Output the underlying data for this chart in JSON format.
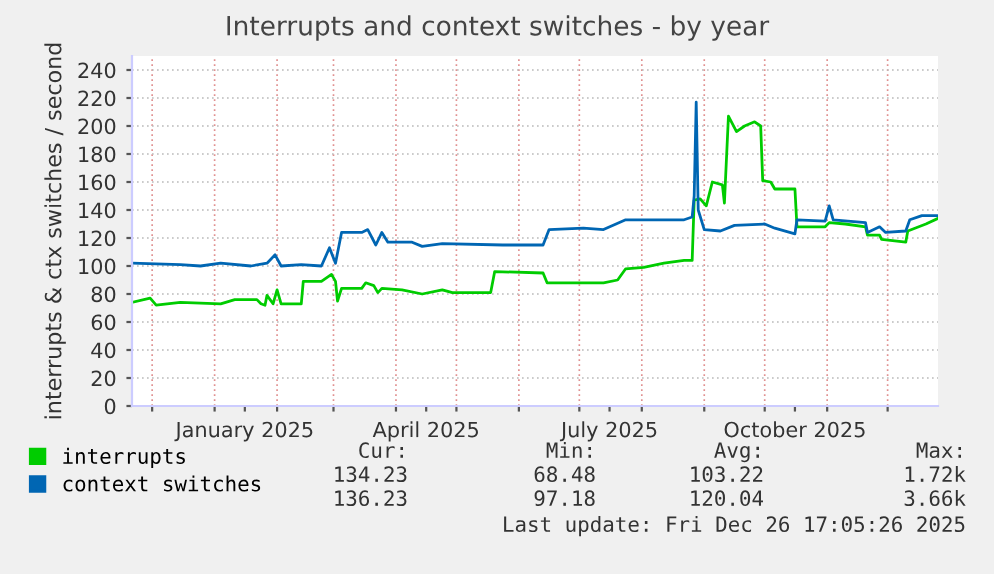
{
  "chart_data": {
    "type": "line",
    "title": "Interrupts and context switches - by year",
    "ylabel": "interrupts & ctx switches / second",
    "xlim": [
      "2024-11-21",
      "2025-12-26"
    ],
    "xticks": [
      {
        "value": "2024-12-01",
        "label": null
      },
      {
        "value": "2025-01-01",
        "label": null
      },
      {
        "value": "2025-01-16",
        "label": "January 2025"
      },
      {
        "value": "2025-02-01",
        "label": null
      },
      {
        "value": "2025-03-01",
        "label": null
      },
      {
        "value": "2025-04-01",
        "label": null
      },
      {
        "value": "2025-04-16",
        "label": "April 2025"
      },
      {
        "value": "2025-05-01",
        "label": null
      },
      {
        "value": "2025-06-01",
        "label": null
      },
      {
        "value": "2025-07-01",
        "label": null
      },
      {
        "value": "2025-07-16",
        "label": "July 2025"
      },
      {
        "value": "2025-08-01",
        "label": null
      },
      {
        "value": "2025-09-01",
        "label": null
      },
      {
        "value": "2025-10-01",
        "label": null
      },
      {
        "value": "2025-10-16",
        "label": "October 2025"
      },
      {
        "value": "2025-11-01",
        "label": null
      },
      {
        "value": "2025-12-01",
        "label": null
      }
    ],
    "ylim": [
      0,
      250
    ],
    "yticks": [
      0,
      20,
      40,
      60,
      80,
      100,
      120,
      140,
      160,
      180,
      200,
      220,
      240
    ],
    "grid": true,
    "legend": "bottom left",
    "marker": "none",
    "line_style": "solid",
    "series": [
      {
        "name": "interrupts",
        "color": "#00cc00",
        "x": [
          "2024-11-21",
          "2024-11-30",
          "2024-12-03",
          "2024-12-15",
          "2025-01-04",
          "2025-01-11",
          "2025-01-22",
          "2025-01-24",
          "2025-01-26",
          "2025-01-27",
          "2025-01-30",
          "2025-02-01",
          "2025-02-03",
          "2025-02-13",
          "2025-02-14",
          "2025-02-23",
          "2025-02-28",
          "2025-03-02",
          "2025-03-03",
          "2025-03-05",
          "2025-03-15",
          "2025-03-17",
          "2025-03-21",
          "2025-03-23",
          "2025-03-25",
          "2025-04-04",
          "2025-04-14",
          "2025-04-24",
          "2025-04-29",
          "2025-05-18",
          "2025-05-20",
          "2025-06-13",
          "2025-06-15",
          "2025-07-13",
          "2025-07-20",
          "2025-07-24",
          "2025-08-02",
          "2025-08-12",
          "2025-08-22",
          "2025-08-26",
          "2025-08-27",
          "2025-08-30",
          "2025-09-02",
          "2025-09-05",
          "2025-09-10",
          "2025-09-11",
          "2025-09-13",
          "2025-09-17",
          "2025-09-21",
          "2025-09-26",
          "2025-09-29",
          "2025-09-30",
          "2025-10-04",
          "2025-10-06",
          "2025-10-16",
          "2025-10-17",
          "2025-10-31",
          "2025-11-02",
          "2025-11-10",
          "2025-11-20",
          "2025-11-21",
          "2025-11-27",
          "2025-11-28",
          "2025-12-10",
          "2025-12-11",
          "2025-12-20",
          "2025-12-26"
        ],
        "values": [
          74,
          77,
          72,
          74,
          73,
          76,
          76,
          73,
          72,
          79,
          73,
          83,
          73,
          73,
          89,
          89,
          94,
          89,
          75,
          84,
          84,
          88,
          86,
          81,
          84,
          83,
          80,
          83,
          81,
          81,
          96,
          95,
          88,
          88,
          90,
          98,
          99,
          102,
          104,
          104,
          147,
          148,
          143,
          160,
          158,
          145,
          207,
          196,
          200,
          203,
          200,
          161,
          160,
          155,
          155,
          128,
          128,
          131,
          130,
          128,
          122,
          122,
          119,
          117,
          125,
          130,
          134
        ]
      },
      {
        "name": "context switches",
        "color": "#0066b3",
        "x": [
          "2024-11-21",
          "2024-12-15",
          "2024-12-25",
          "2025-01-04",
          "2025-01-19",
          "2025-01-27",
          "2025-01-31",
          "2025-02-03",
          "2025-02-13",
          "2025-02-23",
          "2025-02-27",
          "2025-03-02",
          "2025-03-05",
          "2025-03-15",
          "2025-03-18",
          "2025-03-22",
          "2025-03-25",
          "2025-03-28",
          "2025-04-09",
          "2025-04-14",
          "2025-04-24",
          "2025-05-24",
          "2025-06-13",
          "2025-06-16",
          "2025-07-03",
          "2025-07-13",
          "2025-07-24",
          "2025-08-22",
          "2025-08-26",
          "2025-08-27",
          "2025-08-28",
          "2025-08-29",
          "2025-09-01",
          "2025-09-09",
          "2025-09-16",
          "2025-10-01",
          "2025-10-06",
          "2025-10-16",
          "2025-10-17",
          "2025-10-31",
          "2025-11-02",
          "2025-11-04",
          "2025-11-20",
          "2025-11-21",
          "2025-11-27",
          "2025-11-30",
          "2025-12-10",
          "2025-12-12",
          "2025-12-18",
          "2025-12-26"
        ],
        "values": [
          102,
          101,
          100,
          102,
          100,
          102,
          108,
          100,
          101,
          100,
          113,
          102,
          124,
          124,
          126,
          115,
          124,
          117,
          117,
          114,
          116,
          115,
          115,
          126,
          127,
          126,
          133,
          133,
          135,
          150,
          217,
          140,
          126,
          125,
          129,
          130,
          127,
          123,
          133,
          132,
          143,
          133,
          131,
          124,
          128,
          124,
          125,
          133,
          136,
          136
        ]
      }
    ],
    "annotations": [
      "Cur:",
      "Min:",
      "Avg:",
      "Max:",
      "134.23",
      "68.48",
      "103.22",
      "1.72k",
      "136.23",
      "97.18",
      "120.04",
      "3.66k",
      "Last update: Fri Dec 26 17:05:26 2025"
    ]
  }
}
